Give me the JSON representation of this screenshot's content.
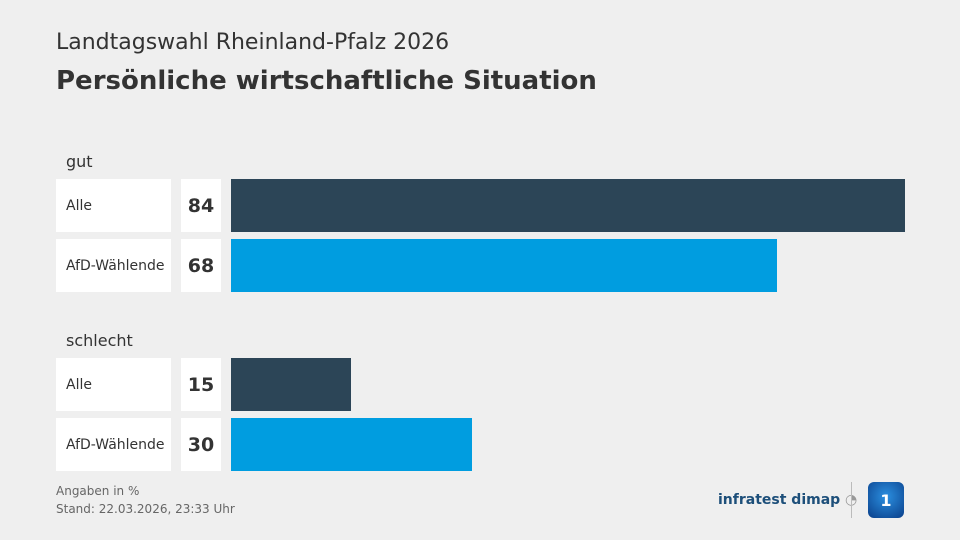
{
  "header": {
    "supertitle": "Landtagswahl Rheinland-Pfalz 2026",
    "title": "Persönliche wirtschaftliche Situation"
  },
  "chart_data": {
    "type": "bar",
    "orientation": "horizontal",
    "xlim": [
      0,
      100
    ],
    "unit": "%",
    "groups": [
      {
        "label": "gut",
        "rows": [
          {
            "label": "Alle",
            "value": 84,
            "color": "#2c4557"
          },
          {
            "label": "AfD-Wählende",
            "value": 68,
            "color": "#009de0"
          }
        ]
      },
      {
        "label": "schlecht",
        "rows": [
          {
            "label": "Alle",
            "value": 15,
            "color": "#2c4557"
          },
          {
            "label": "AfD-Wählende",
            "value": 30,
            "color": "#009de0"
          }
        ]
      }
    ]
  },
  "footer": {
    "note": "Angaben in %",
    "stand": "Stand:  22.03.2026, 23:33 Uhr"
  },
  "logos": {
    "infratest": "infratest dimap",
    "ard": "1"
  }
}
